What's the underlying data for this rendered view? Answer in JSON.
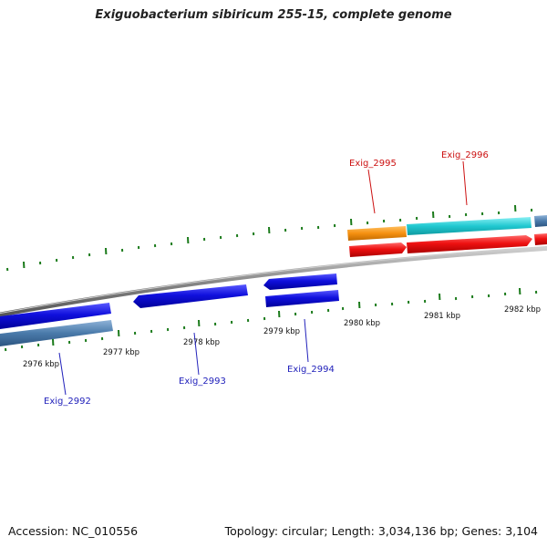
{
  "title": "Exiguobacterium sibiricum 255-15, complete genome",
  "footer": {
    "accession": "Accession: NC_010556",
    "stats": "Topology: circular; Length: 3,034,136 bp; Genes: 3,104"
  },
  "kbp_labels": [
    "2976 kbp",
    "2977 kbp",
    "2978 kbp",
    "2979 kbp",
    "2980 kbp",
    "2981 kbp",
    "2982 kbp"
  ],
  "gene_labels": {
    "exig_2992": "Exig_2992",
    "exig_2993": "Exig_2993",
    "exig_2994": "Exig_2994",
    "exig_2995": "Exig_2995",
    "exig_2996": "Exig_2996"
  },
  "colors": {
    "reverse_gene": "#1010dd",
    "reverse_gene_alt": "#4a7aaa",
    "forward_gene": "#ee1111",
    "forward_gene_cyan": "#20c8d0",
    "forward_gene_orange": "#f59010",
    "label_reverse": "#2222bb",
    "label_forward": "#cc1111",
    "tick": "#1a7a1a",
    "backbone": "#888888"
  }
}
